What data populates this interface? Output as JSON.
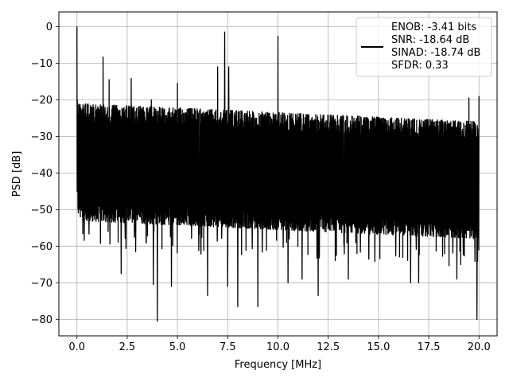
{
  "chart_data": {
    "type": "line",
    "xlabel": "Frequency [MHz]",
    "ylabel": "PSD [dB]",
    "xlim": [
      -0.9,
      20.9
    ],
    "ylim": [
      -84.5,
      4.0
    ],
    "x_ticks": [
      0.0,
      2.5,
      5.0,
      7.5,
      10.0,
      12.5,
      15.0,
      17.5,
      20.0
    ],
    "x_tick_labels": [
      "0.0",
      "2.5",
      "5.0",
      "7.5",
      "10.0",
      "12.5",
      "15.0",
      "17.5",
      "20.0"
    ],
    "y_ticks": [
      0,
      -10,
      -20,
      -30,
      -40,
      -50,
      -60,
      -70,
      -80
    ],
    "y_tick_labels": [
      "0",
      "−10",
      "−20",
      "−30",
      "−40",
      "−50",
      "−60",
      "−70",
      "−80"
    ],
    "grid": true,
    "legend_position": "top-right",
    "series_color": "#000000",
    "legend_lines": [
      "ENOB: -3.41 bits",
      "SNR: -18.64 dB",
      "SINAD: -18.74 dB",
      "SFDR: 0.33"
    ],
    "spurs": [
      {
        "x": 0.0,
        "y": 0.0
      },
      {
        "x": 1.3,
        "y": -8.3
      },
      {
        "x": 1.6,
        "y": -14.5
      },
      {
        "x": 2.7,
        "y": -14.2
      },
      {
        "x": 3.7,
        "y": -20.0
      },
      {
        "x": 3.8,
        "y": -16.5
      },
      {
        "x": 5.0,
        "y": -15.5
      },
      {
        "x": 7.0,
        "y": -11.0
      },
      {
        "x": 7.35,
        "y": -1.5
      },
      {
        "x": 7.55,
        "y": -11.0
      },
      {
        "x": 10.0,
        "y": -2.7
      },
      {
        "x": 19.5,
        "y": -19.5
      },
      {
        "x": 20.0,
        "y": -19.0
      }
    ],
    "dips": [
      {
        "x": 2.2,
        "y": -67.5
      },
      {
        "x": 3.8,
        "y": -70.5
      },
      {
        "x": 4.0,
        "y": -80.5
      },
      {
        "x": 4.7,
        "y": -71.0
      },
      {
        "x": 6.5,
        "y": -73.5
      },
      {
        "x": 7.5,
        "y": -71.0
      },
      {
        "x": 8.0,
        "y": -76.5
      },
      {
        "x": 9.0,
        "y": -76.5
      },
      {
        "x": 10.5,
        "y": -70.0
      },
      {
        "x": 11.2,
        "y": -69.0
      },
      {
        "x": 12.0,
        "y": -73.5
      },
      {
        "x": 13.5,
        "y": -69.0
      },
      {
        "x": 16.6,
        "y": -70.0
      },
      {
        "x": 17.0,
        "y": -70.0
      },
      {
        "x": 18.9,
        "y": -69.0
      },
      {
        "x": 19.9,
        "y": -80.0
      }
    ],
    "noise_floor": {
      "upper_envelope_start": -21.0,
      "upper_envelope_end": -26.0,
      "lower_envelope_start": -53.0,
      "lower_envelope_end": -58.0
    }
  }
}
